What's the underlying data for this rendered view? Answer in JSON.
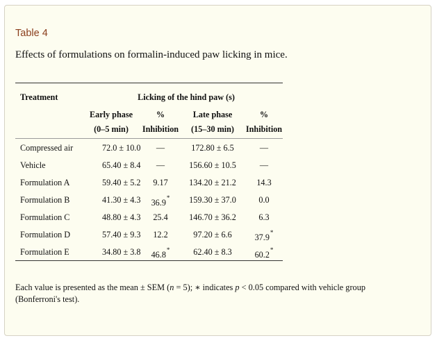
{
  "table_label": "Table 4",
  "caption": "Effects of formulations on formalin-induced paw licking in mice.",
  "header": {
    "treatment": "Treatment",
    "group": "Licking of the hind paw (s)",
    "early_phase": "Early phase",
    "early_range": "(0–5 min)",
    "pct1_top": "%",
    "pct1_bottom": "Inhibition",
    "late_phase": "Late phase",
    "late_range": "(15–30 min)",
    "pct2_top": "%",
    "pct2_bottom": "Inhibition"
  },
  "rows": [
    {
      "treatment": "Compressed air",
      "early": "72.0 ± 10.0",
      "early_inh": "—",
      "early_star": "",
      "late": "172.80 ± 6.5",
      "late_inh": "—",
      "late_star": ""
    },
    {
      "treatment": "Vehicle",
      "early": "65.40 ± 8.4",
      "early_inh": "—",
      "early_star": "",
      "late": "156.60 ± 10.5",
      "late_inh": "—",
      "late_star": ""
    },
    {
      "treatment": "Formulation A",
      "early": "59.40 ± 5.2",
      "early_inh": "9.17",
      "early_star": "",
      "late": "134.20 ± 21.2",
      "late_inh": "14.3",
      "late_star": ""
    },
    {
      "treatment": "Formulation B",
      "early": "41.30 ± 4.3",
      "early_inh": "36.9",
      "early_star": "*",
      "late": "159.30 ± 37.0",
      "late_inh": "0.0",
      "late_star": ""
    },
    {
      "treatment": "Formulation C",
      "early": "48.80 ± 4.3",
      "early_inh": "25.4",
      "early_star": "",
      "late": "146.70 ± 36.2",
      "late_inh": "6.3",
      "late_star": ""
    },
    {
      "treatment": "Formulation D",
      "early": "57.40 ± 9.3",
      "early_inh": "12.2",
      "early_star": "",
      "late": "97.20 ± 6.6",
      "late_inh": "37.9",
      "late_star": "*"
    },
    {
      "treatment": "Formulation E",
      "early": "34.80 ± 3.8",
      "early_inh": "46.8",
      "early_star": "*",
      "late": "62.40 ± 8.3",
      "late_inh": "60.2",
      "late_star": "*"
    }
  ],
  "footnote": {
    "part1": "Each value is presented as the mean ± SEM (",
    "n": "n",
    "part2": " = 5); ∗ indicates ",
    "p": "p",
    "part3": " < 0.05 compared with vehicle group (Bonferroni's test)."
  }
}
